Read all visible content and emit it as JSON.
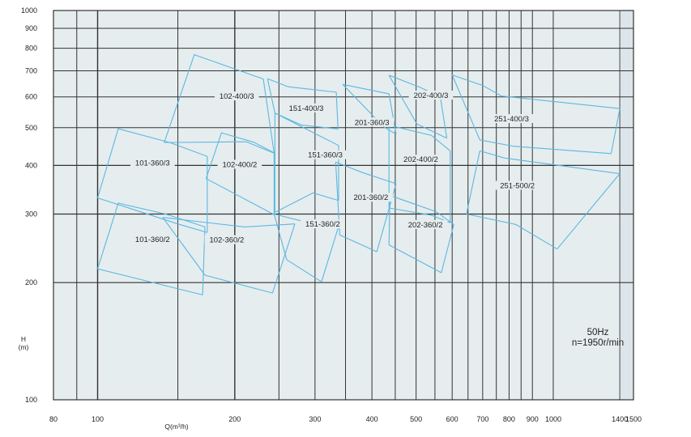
{
  "chart_data": {
    "type": "line",
    "title": "",
    "xlabel": "Q(m³/h)",
    "ylabel_line1": "H",
    "ylabel_line2": "(m)",
    "xscale": "log",
    "yscale": "log",
    "xlim": [
      80,
      1500
    ],
    "ylim": [
      100,
      1000
    ],
    "grid": true,
    "x_ticks": [
      80,
      100,
      200,
      300,
      400,
      500,
      600,
      700,
      800,
      900,
      1000,
      1400,
      1500
    ],
    "y_ticks": [
      100,
      200,
      300,
      400,
      500,
      600,
      700,
      800,
      900,
      1000
    ],
    "x_gridlines": [
      90,
      100,
      150,
      200,
      250,
      300,
      350,
      400,
      450,
      500,
      550,
      600,
      650,
      700,
      750,
      800,
      850,
      900,
      1000,
      1400
    ],
    "note_line1": "50Hz",
    "note_line2": "n=1950r/min",
    "outline_color": "#5bb8e0",
    "plot_bg": "#e6edef",
    "regions": [
      {
        "name": "101-360/3",
        "label_at": [
          132,
          404
        ],
        "top": [
          [
            100,
            330
          ],
          [
            111,
            497
          ],
          [
            144,
            458
          ],
          [
            174,
            422
          ]
        ],
        "bottom": [
          [
            100,
            330
          ],
          [
            119,
            309
          ],
          [
            150,
            283
          ],
          [
            174,
            269
          ]
        ]
      },
      {
        "name": "101-360/2",
        "label_at": [
          132,
          257
        ],
        "top": [
          [
            100,
            217
          ],
          [
            111,
            320
          ],
          [
            141,
            300
          ],
          [
            172,
            278
          ]
        ],
        "bottom": [
          [
            100,
            217
          ],
          [
            170,
            186
          ]
        ]
      },
      {
        "name": "102-400/3",
        "label_at": [
          202,
          599
        ],
        "top": [
          [
            140,
            458
          ],
          [
            163,
            770
          ],
          [
            231,
            667
          ]
        ],
        "bottom": [
          [
            212,
            460
          ],
          [
            244,
            430
          ]
        ]
      },
      {
        "name": "102-400/2 ",
        "label_at": [
          205,
          400
        ],
        "top": [
          [
            173,
            370
          ],
          [
            187,
            485
          ],
          [
            220,
            459
          ],
          [
            244,
            431
          ]
        ],
        "bottom": [
          [
            173,
            370
          ],
          [
            244,
            299
          ]
        ]
      },
      {
        "name": "102-360/2",
        "label_at": [
          192,
          256
        ],
        "top": [
          [
            139,
            294
          ],
          [
            210,
            278
          ],
          [
            271,
            283
          ]
        ],
        "bottom": [
          [
            172,
            209
          ],
          [
            242,
            188
          ]
        ]
      },
      {
        "name": "151-400/3",
        "label_at": [
          287,
          558
        ],
        "top": [
          [
            236,
            668
          ],
          [
            262,
            637
          ],
          [
            334,
            617
          ]
        ],
        "bottom": [
          [
            245,
            545
          ],
          [
            280,
            508
          ],
          [
            337,
            496
          ]
        ]
      },
      {
        "name": "151-360/3",
        "label_at": [
          316,
          423
        ],
        "top": [
          [
            245,
            545
          ],
          [
            297,
            486
          ],
          [
            338,
            450
          ]
        ],
        "bottom": [
          [
            245,
            303
          ],
          [
            297,
            340
          ],
          [
            338,
            325
          ]
        ]
      },
      {
        "name": "151-360/2",
        "label_at": [
          312,
          281
        ],
        "top": [
          [
            244,
            300
          ],
          [
            290,
            285
          ],
          [
            338,
            279
          ]
        ],
        "bottom": [
          [
            260,
            229
          ],
          [
            310,
            201
          ]
        ]
      },
      {
        "name": "201-360/3",
        "label_at": [
          400,
          513
        ],
        "top": [
          [
            345,
            646
          ],
          [
            436,
            611
          ]
        ],
        "bottom": [
          [
            425,
            502
          ],
          [
            452,
            481
          ]
        ]
      },
      {
        "name": "201-360/2",
        "label_at": [
          398,
          329
        ],
        "top": [
          [
            333,
            408
          ],
          [
            380,
            384
          ],
          [
            452,
            359
          ]
        ],
        "bottom": [
          [
            340,
            265
          ],
          [
            410,
            240
          ]
        ]
      },
      {
        "name": "202-400/3",
        "label_at": [
          539,
          602
        ],
        "top": [
          [
            436,
            682
          ],
          [
            508,
            636
          ],
          [
            565,
            601
          ]
        ],
        "bottom": [
          [
            502,
            511
          ],
          [
            584,
            470
          ]
        ]
      },
      {
        "name": "202-400/2",
        "label_at": [
          512,
          412
        ],
        "top": [
          [
            436,
            507
          ],
          [
            540,
            478
          ],
          [
            594,
            436
          ]
        ],
        "bottom": [
          [
            436,
            311
          ],
          [
            540,
            298
          ],
          [
            594,
            285
          ]
        ]
      },
      {
        "name": "202-360/2",
        "label_at": [
          524,
          280
        ],
        "top": [
          [
            438,
            335
          ],
          [
            554,
            304
          ],
          [
            605,
            282
          ]
        ],
        "bottom": [
          [
            436,
            250
          ],
          [
            568,
            212
          ]
        ]
      },
      {
        "name": "251-400/3",
        "label_at": [
          810,
          524
        ],
        "top": [
          [
            600,
            683
          ],
          [
            700,
            642
          ],
          [
            770,
            603
          ],
          [
            1400,
            560
          ]
        ],
        "bottom": [
          [
            690,
            465
          ],
          [
            819,
            448
          ],
          [
            1340,
            429
          ]
        ]
      },
      {
        "name": "251-500/2",
        "label_at": [
          834,
          353
        ],
        "top": [
          [
            690,
            436
          ],
          [
            780,
            418
          ],
          [
            1400,
            381
          ]
        ],
        "bottom": [
          [
            645,
            300
          ],
          [
            828,
            282
          ],
          [
            1020,
            244
          ]
        ]
      }
    ]
  }
}
